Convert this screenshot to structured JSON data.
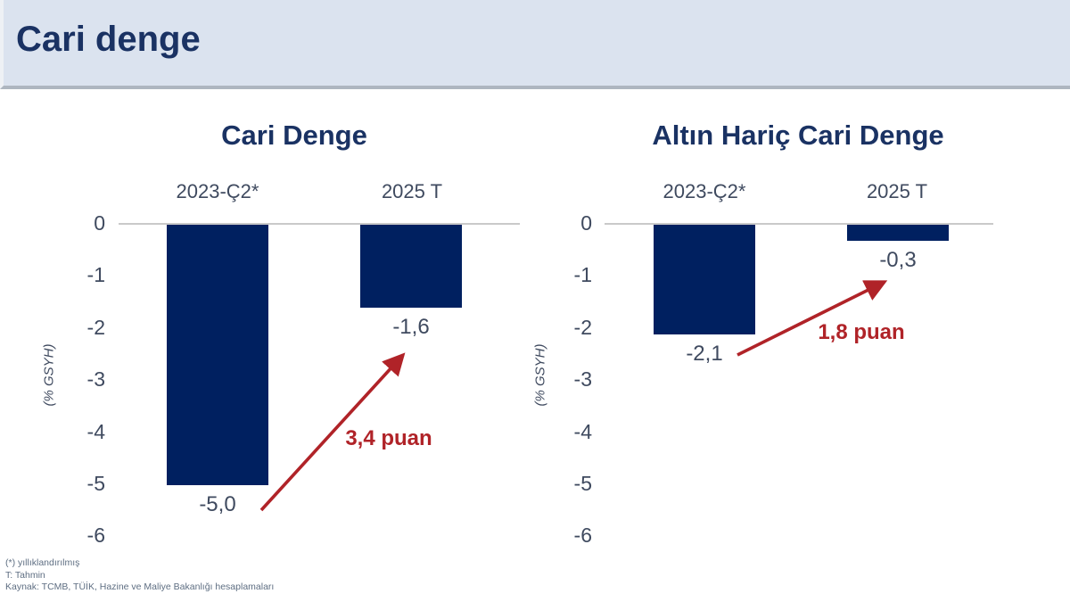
{
  "slide": {
    "title": "Cari denge"
  },
  "colors": {
    "bar": "#002060",
    "accent_red": "#b02328",
    "header_bg": "#dbe3ef",
    "title_text": "#1a3263",
    "axis_text": "#3f4a5f"
  },
  "footnotes": {
    "line1": "(*) yıllıklandırılmış",
    "line2": "T: Tahmin",
    "line3": "Kaynak: TCMB, TÜİK, Hazine ve Maliye Bakanlığı hesaplamaları"
  },
  "chart_data": [
    {
      "type": "bar",
      "title": "Cari Denge",
      "categories": [
        "2023-Ç2*",
        "2025 T"
      ],
      "values": [
        -5.0,
        -1.6
      ],
      "value_labels": [
        "-5,0",
        "-1,6"
      ],
      "ylabel": "(% GSYH)",
      "ylim": [
        -6,
        0
      ],
      "yticks": [
        0,
        -1,
        -2,
        -3,
        -4,
        -5,
        -6
      ],
      "grid": false,
      "annotation": {
        "text": "3,4 puan",
        "shape": "arrow-up-right",
        "color": "#b02328"
      }
    },
    {
      "type": "bar",
      "title": "Altın Hariç Cari Denge",
      "categories": [
        "2023-Ç2*",
        "2025 T"
      ],
      "values": [
        -2.1,
        -0.3
      ],
      "value_labels": [
        "-2,1",
        "-0,3"
      ],
      "ylabel": "(% GSYH)",
      "ylim": [
        -6,
        0
      ],
      "yticks": [
        0,
        -1,
        -2,
        -3,
        -4,
        -5,
        -6
      ],
      "grid": false,
      "annotation": {
        "text": "1,8 puan",
        "shape": "arrow-up-right",
        "color": "#b02328"
      }
    }
  ]
}
